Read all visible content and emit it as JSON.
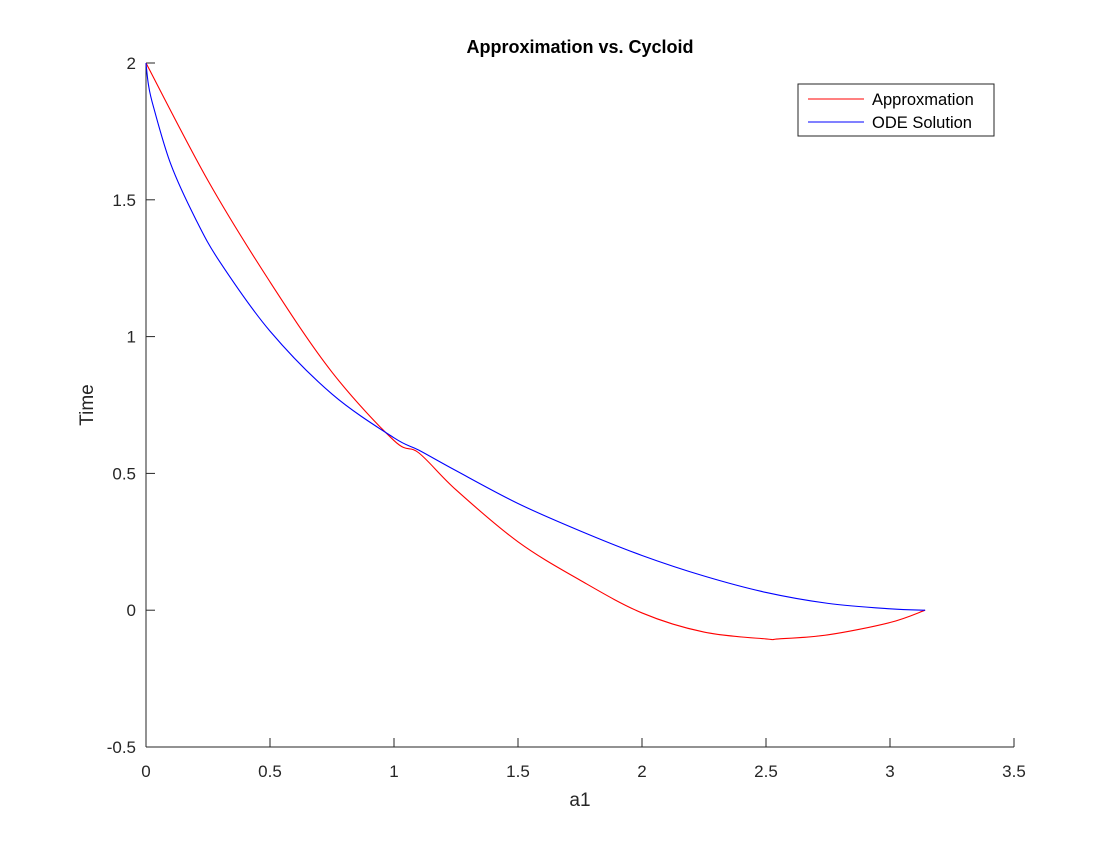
{
  "chart_data": {
    "type": "line",
    "title": "Approximation vs. Cycloid",
    "xlabel": "a1",
    "ylabel": "Time",
    "xlim": [
      0,
      3.5
    ],
    "ylim": [
      -0.5,
      2
    ],
    "xticks": [
      0,
      0.5,
      1,
      1.5,
      2,
      2.5,
      3,
      3.5
    ],
    "xtick_labels": [
      "0",
      "0.5",
      "1",
      "1.5",
      "2",
      "2.5",
      "3",
      "3.5"
    ],
    "yticks": [
      -0.5,
      0,
      0.5,
      1,
      1.5,
      2
    ],
    "ytick_labels": [
      "-0.5",
      "0",
      "0.5",
      "1",
      "1.5",
      "2"
    ],
    "grid": false,
    "legend_position": "top-right",
    "series": [
      {
        "name": "Approxmation",
        "color": "#ff0000",
        "x": [
          0,
          0.25,
          0.5,
          0.75,
          1.0,
          1.1,
          1.25,
          1.5,
          1.75,
          2.0,
          2.25,
          2.5,
          2.55,
          2.75,
          3.0,
          3.1416
        ],
        "y": [
          2.0,
          1.57,
          1.2,
          0.87,
          0.62,
          0.575,
          0.44,
          0.25,
          0.11,
          -0.01,
          -0.08,
          -0.105,
          -0.105,
          -0.09,
          -0.045,
          0.0
        ]
      },
      {
        "name": "ODE Solution",
        "color": "#0000ff",
        "x": [
          0,
          0.01,
          0.03,
          0.1,
          0.2,
          0.3,
          0.5,
          0.75,
          1.0,
          1.1,
          1.25,
          1.5,
          1.75,
          2.0,
          2.25,
          2.5,
          2.75,
          3.0,
          3.1416
        ],
        "y": [
          2.0,
          1.92,
          1.84,
          1.63,
          1.43,
          1.27,
          1.02,
          0.79,
          0.63,
          0.585,
          0.51,
          0.39,
          0.29,
          0.2,
          0.125,
          0.065,
          0.025,
          0.005,
          0.0
        ]
      }
    ]
  }
}
